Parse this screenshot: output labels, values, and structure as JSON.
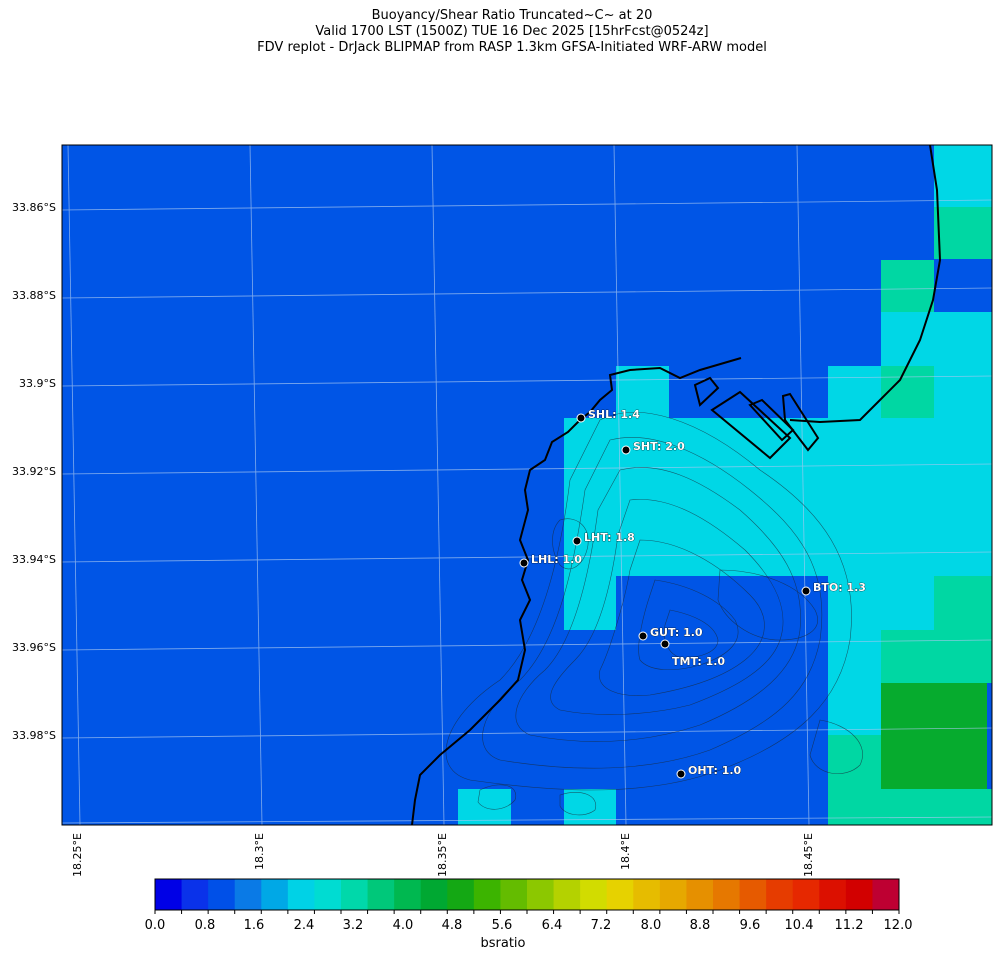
{
  "title": {
    "line1": "Buoyancy/Shear Ratio Truncated~C~    at 20",
    "line2": "Valid 1700 LST (1500Z) TUE 16 Dec 2025 [15hrFcst@0524z]",
    "line3": "FDV replot - DrJack BLIPMAP from RASP 1.3km GFSA-Initiated WRF-ARW model"
  },
  "axes": {
    "lat_labels": [
      "33.86°S",
      "33.88°S",
      "33.9°S",
      "33.92°S",
      "33.94°S",
      "33.96°S",
      "33.98°S"
    ],
    "lon_labels": [
      "18.25°E",
      "18.3°E",
      "18.35°E",
      "18.4°E",
      "18.45°E"
    ]
  },
  "stations": [
    {
      "code": "SHL",
      "label": "SHL: 1.4"
    },
    {
      "code": "SHT",
      "label": "SHT: 2.0"
    },
    {
      "code": "LHT",
      "label": "LHT: 1.8"
    },
    {
      "code": "LHL",
      "label": "LHL: 1.0"
    },
    {
      "code": "BTO",
      "label": "BTO: 1.3"
    },
    {
      "code": "GUT",
      "label": "GUT: 1.0"
    },
    {
      "code": "TMT",
      "label": ""
    },
    {
      "code": "TMT_label",
      "label": "TMT: 1.0"
    },
    {
      "code": "OHT",
      "label": "OHT: 1.0"
    }
  ],
  "colorbar": {
    "title": "bsratio",
    "tick_labels": [
      "0.0",
      "0.8",
      "1.6",
      "2.4",
      "3.2",
      "4.0",
      "4.8",
      "5.6",
      "6.4",
      "7.2",
      "8.0",
      "8.8",
      "9.6",
      "10.4",
      "11.2",
      "12.0"
    ],
    "colors": [
      "#0000e6",
      "#0a32ea",
      "#0050e8",
      "#0a7ae6",
      "#00a8e6",
      "#00d2e6",
      "#00dcd2",
      "#00d8aa",
      "#00c87a",
      "#00b850",
      "#00a832",
      "#14a814",
      "#3cb400",
      "#64bc00",
      "#8cc800",
      "#b4d200",
      "#d2dc00",
      "#e6d200",
      "#e6bc00",
      "#e6a800",
      "#e69000",
      "#e67800",
      "#e65a00",
      "#e63c00",
      "#e62800",
      "#dc1000",
      "#d20000",
      "#be0032"
    ]
  },
  "field_colors": {
    "deep_blue": "#0055e6",
    "cyan": "#00d7e6",
    "teal": "#00d7a3",
    "green": "#06ab2e"
  }
}
